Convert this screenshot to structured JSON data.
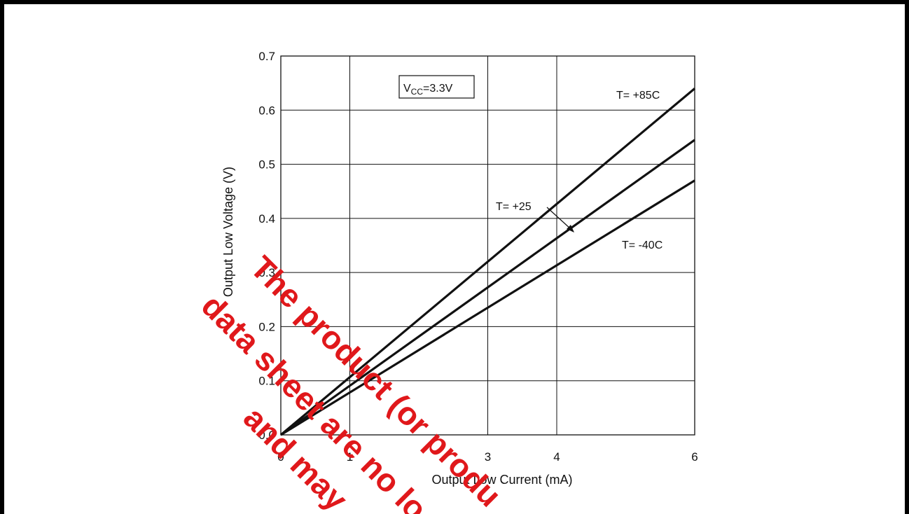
{
  "chart_data": {
    "type": "line",
    "title": "",
    "xlabel": "Output Low Current (mA)",
    "ylabel": "Output Low Voltage (V)",
    "xlim": [
      0,
      6
    ],
    "ylim": [
      0,
      0.7
    ],
    "xticks": [
      0,
      1,
      3,
      4,
      6
    ],
    "xtick_labels": [
      "0",
      "1",
      "3",
      "4",
      "6"
    ],
    "yticks": [
      0,
      0.1,
      0.2,
      0.3,
      0.4,
      0.5,
      0.6,
      0.7
    ],
    "ytick_labels": [
      "0.0",
      "0.1",
      "0.2",
      "0.3",
      "0.4",
      "0.5",
      "0.6",
      "0.7"
    ],
    "grid": true,
    "condition_box": {
      "main": "V",
      "sub": "CC",
      "rest": "=3.3V"
    },
    "series": [
      {
        "name": "T= +85C",
        "x": [
          0,
          6
        ],
        "y": [
          0,
          0.64
        ]
      },
      {
        "name": "T= +25",
        "x": [
          0,
          6
        ],
        "y": [
          0,
          0.545
        ]
      },
      {
        "name": "T= -40C",
        "x": [
          0,
          6
        ],
        "y": [
          0,
          0.47
        ]
      }
    ],
    "line_color": "#111111"
  },
  "watermark": {
    "lines": [
      "The product (or produ",
      "data sheet are no lo",
      "and may"
    ],
    "color": "#e0181b"
  }
}
